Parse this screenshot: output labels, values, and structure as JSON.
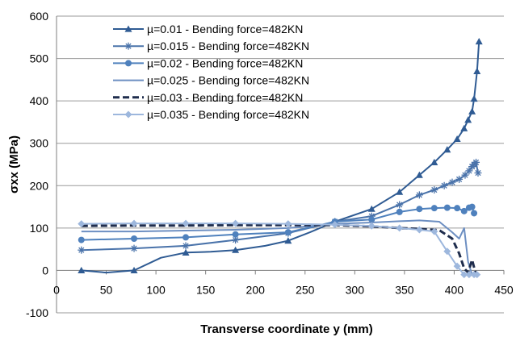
{
  "chart_data": {
    "type": "line",
    "title": "",
    "xlabel": "Transverse coordinate y (mm)",
    "ylabel": "σxx (MPa)",
    "xlim": [
      0,
      450
    ],
    "ylim": [
      -100,
      600
    ],
    "xticks": [
      0,
      50,
      100,
      150,
      200,
      250,
      300,
      350,
      400,
      450
    ],
    "yticks": [
      -100,
      0,
      100,
      200,
      300,
      400,
      500,
      600
    ],
    "grid": "horizontal",
    "legend_position": "top-left",
    "series": [
      {
        "name": "µ=0.01 - Bending force=482KN",
        "color": "#2f5b93",
        "dash": "solid",
        "marker": "triangle",
        "x": [
          25,
          78,
          130,
          180,
          233,
          280,
          317,
          345,
          365,
          380,
          393,
          403,
          410,
          414,
          418,
          420,
          423
        ],
        "y": [
          0,
          0,
          42,
          48,
          70,
          115,
          145,
          185,
          225,
          255,
          285,
          310,
          335,
          355,
          375,
          405,
          470
        ],
        "extra": [
          [
            425,
            540
          ]
        ],
        "curve_only_x": [
          50,
          105,
          155,
          210,
          255
        ],
        "curve_only_y": [
          -5,
          30,
          44,
          58,
          90
        ]
      },
      {
        "name": "µ=0.015 -  Bending force=482KN",
        "color": "#4a73aa",
        "dash": "solid",
        "marker": "star",
        "x": [
          25,
          78,
          130,
          180,
          233,
          280,
          317,
          345,
          365,
          380,
          390,
          398,
          405,
          411,
          415,
          418,
          420,
          422,
          424
        ],
        "y": [
          48,
          52,
          58,
          72,
          88,
          115,
          128,
          155,
          178,
          190,
          200,
          208,
          215,
          225,
          235,
          245,
          250,
          255,
          230
        ]
      },
      {
        "name": "µ=0.02 -  Bending force=482KN",
        "color": "#4f81bd",
        "dash": "solid",
        "marker": "circle",
        "x": [
          25,
          78,
          130,
          180,
          233,
          280,
          317,
          345,
          365,
          380,
          393,
          403,
          410,
          415,
          418,
          420
        ],
        "y": [
          72,
          75,
          78,
          85,
          90,
          115,
          120,
          138,
          145,
          147,
          148,
          147,
          140,
          148,
          150,
          135
        ]
      },
      {
        "name": "µ=0.025 -  Bending force=482KN",
        "color": "#6d8fc2",
        "dash": "solid",
        "marker": "none",
        "x": [
          25,
          78,
          130,
          180,
          233,
          280,
          317,
          345,
          365,
          385,
          398,
          405,
          410,
          414,
          418,
          422
        ],
        "y": [
          92,
          92,
          94,
          96,
          100,
          110,
          113,
          116,
          118,
          115,
          90,
          75,
          100,
          20,
          -10,
          -10
        ]
      },
      {
        "name": "µ=0.03 -  Bending force=482KN",
        "color": "#1f2d4d",
        "dash": "dashed",
        "marker": "none",
        "x": [
          25,
          78,
          130,
          180,
          233,
          280,
          317,
          345,
          365,
          385,
          398,
          405,
          410,
          414,
          418,
          422
        ],
        "y": [
          105,
          106,
          106,
          107,
          107,
          107,
          104,
          100,
          98,
          95,
          75,
          40,
          5,
          -5,
          25,
          -10
        ]
      },
      {
        "name": "µ=0.035 -  Bending force=482KN",
        "color": "#9db7dd",
        "dash": "solid",
        "marker": "diamond",
        "x": [
          25,
          78,
          130,
          180,
          233,
          280,
          317,
          345,
          365,
          380,
          393,
          403,
          410,
          415,
          420,
          423
        ],
        "y": [
          110,
          111,
          111,
          111,
          110,
          108,
          105,
          100,
          96,
          92,
          45,
          10,
          -10,
          -10,
          -10,
          -10
        ]
      }
    ]
  }
}
